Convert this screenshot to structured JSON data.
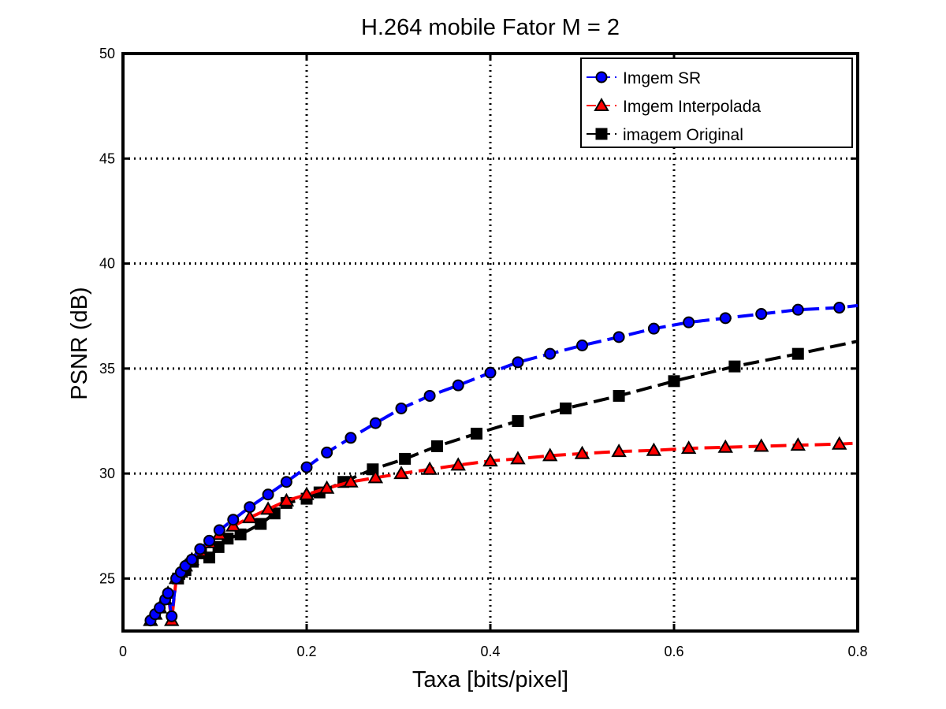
{
  "chart_data": {
    "type": "line",
    "title": "H.264 mobile Fator M = 2",
    "xlabel": "Taxa [bits/pixel]",
    "ylabel": "PSNR (dB)",
    "xlim": [
      0,
      0.8
    ],
    "ylim": [
      22.5,
      50
    ],
    "xticks": [
      0,
      0.2,
      0.4,
      0.6,
      0.8
    ],
    "xtick_labels": [
      "0",
      "0.2",
      "0.4",
      "0.6",
      "0.8"
    ],
    "yticks": [
      25,
      30,
      35,
      40,
      45,
      50
    ],
    "ytick_labels": [
      "25",
      "30",
      "35",
      "40",
      "45",
      "50"
    ],
    "grid": true,
    "legend_position": "top-right",
    "series": [
      {
        "name": "Imgem SR",
        "color": "#0000ff",
        "marker": "circle",
        "line_style": "dashed",
        "x": [
          0.03,
          0.035,
          0.04,
          0.046,
          0.049,
          0.053,
          0.058,
          0.063,
          0.068,
          0.075,
          0.084,
          0.094,
          0.105,
          0.12,
          0.138,
          0.158,
          0.178,
          0.2,
          0.222,
          0.248,
          0.275,
          0.303,
          0.334,
          0.365,
          0.4,
          0.43,
          0.465,
          0.5,
          0.54,
          0.578,
          0.616,
          0.656,
          0.695,
          0.735,
          0.78,
          0.8
        ],
        "y": [
          23.0,
          23.3,
          23.6,
          24.0,
          24.3,
          23.2,
          25.0,
          25.3,
          25.6,
          25.9,
          26.4,
          26.8,
          27.3,
          27.8,
          28.4,
          29.0,
          29.6,
          30.3,
          31.0,
          31.7,
          32.4,
          33.1,
          33.7,
          34.2,
          34.8,
          35.3,
          35.7,
          36.1,
          36.5,
          36.9,
          37.2,
          37.4,
          37.6,
          37.8,
          37.9,
          38.0
        ]
      },
      {
        "name": "Imgem Interpolada",
        "color": "#ff0000",
        "marker": "triangle",
        "line_style": "dashed",
        "x": [
          0.03,
          0.035,
          0.04,
          0.046,
          0.049,
          0.053,
          0.058,
          0.063,
          0.068,
          0.075,
          0.084,
          0.094,
          0.105,
          0.12,
          0.138,
          0.158,
          0.178,
          0.2,
          0.222,
          0.248,
          0.275,
          0.303,
          0.334,
          0.365,
          0.4,
          0.43,
          0.465,
          0.5,
          0.54,
          0.578,
          0.616,
          0.656,
          0.695,
          0.735,
          0.78,
          0.8
        ],
        "y": [
          23.0,
          23.3,
          23.6,
          24.0,
          24.3,
          23.0,
          25.0,
          25.3,
          25.6,
          25.9,
          26.3,
          26.7,
          27.1,
          27.5,
          27.9,
          28.3,
          28.7,
          29.0,
          29.3,
          29.6,
          29.8,
          30.0,
          30.2,
          30.4,
          30.6,
          30.7,
          30.85,
          30.95,
          31.05,
          31.1,
          31.2,
          31.25,
          31.3,
          31.35,
          31.4,
          31.45
        ]
      },
      {
        "name": "imagem Original",
        "color": "#000000",
        "marker": "square",
        "line_style": "dashed",
        "x": [
          0.06,
          0.068,
          0.076,
          0.085,
          0.094,
          0.104,
          0.114,
          0.128,
          0.15,
          0.165,
          0.178,
          0.2,
          0.214,
          0.24,
          0.272,
          0.307,
          0.342,
          0.385,
          0.43,
          0.482,
          0.54,
          0.6,
          0.666,
          0.735,
          0.8
        ],
        "y": [
          25.0,
          25.4,
          25.8,
          26.2,
          26.0,
          26.5,
          26.9,
          27.1,
          27.6,
          28.1,
          28.6,
          28.8,
          29.1,
          29.6,
          30.2,
          30.7,
          31.3,
          31.9,
          32.5,
          33.1,
          33.7,
          34.4,
          35.1,
          35.7,
          36.3
        ]
      }
    ]
  }
}
